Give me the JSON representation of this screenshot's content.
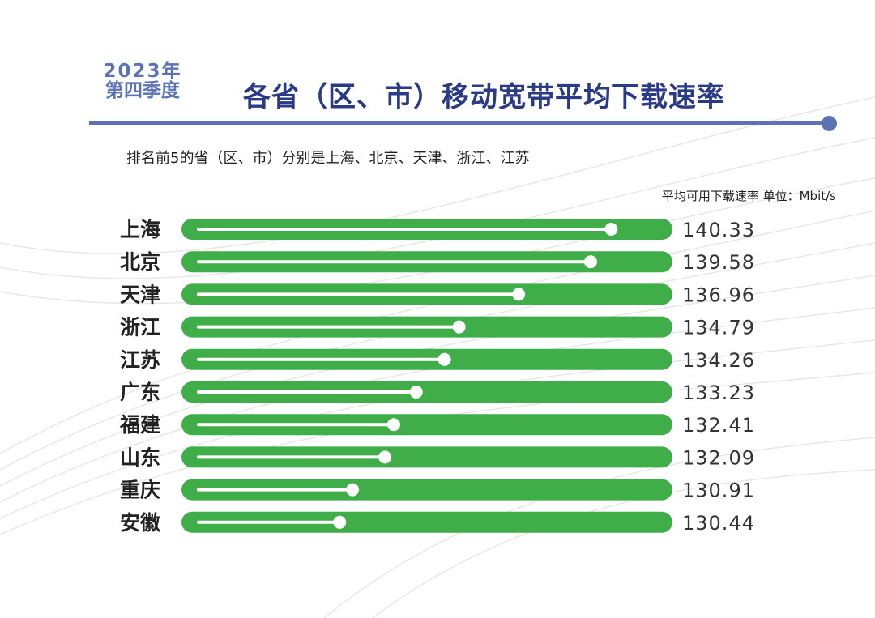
{
  "header": {
    "year": "2023年",
    "quarter": "第四季度",
    "title": "各省（区、市）移动宽带平均下载速率",
    "subtitle": "排名前5的省（区、市）分别是上海、北京、天津、浙江、江苏",
    "unit_note": "平均可用下载速率 单位：Mbit/s"
  },
  "colors": {
    "accent": "#5b73b6",
    "title": "#2a3a86",
    "bar": "#3fae49",
    "track": "#ffffff"
  },
  "chart_data": {
    "type": "bar",
    "orientation": "horizontal",
    "title": "各省（区、市）移动宽带平均下载速率",
    "unit": "Mbit/s",
    "categories": [
      "上海",
      "北京",
      "天津",
      "浙江",
      "江苏",
      "广东",
      "福建",
      "山东",
      "重庆",
      "安徽"
    ],
    "values": [
      140.33,
      139.58,
      136.96,
      134.79,
      134.26,
      133.23,
      132.41,
      132.09,
      130.91,
      130.44
    ],
    "value_labels": [
      "140.33",
      "139.58",
      "136.96",
      "134.79",
      "134.26",
      "133.23",
      "132.41",
      "132.09",
      "130.91",
      "130.44"
    ],
    "grid": false,
    "legend": "none"
  }
}
